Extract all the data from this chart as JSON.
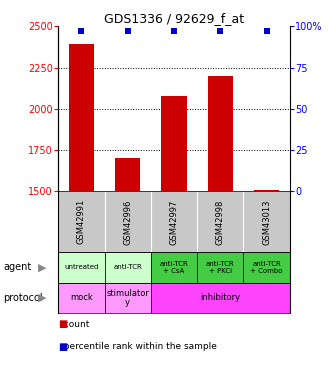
{
  "title": "GDS1336 / 92629_f_at",
  "samples": [
    "GSM42991",
    "GSM42996",
    "GSM42997",
    "GSM42998",
    "GSM43013"
  ],
  "counts": [
    2390,
    1700,
    2080,
    2200,
    1510
  ],
  "percentile_ranks": [
    97,
    97,
    97,
    97,
    97
  ],
  "ylim_left": [
    1500,
    2500
  ],
  "ylim_right": [
    0,
    100
  ],
  "yticks_left": [
    1500,
    1750,
    2000,
    2250,
    2500
  ],
  "yticks_right": [
    0,
    25,
    50,
    75,
    100
  ],
  "bar_color": "#cc0000",
  "square_color": "#0000cc",
  "bar_bottom": 1500,
  "agent_labels": [
    "untreated",
    "anti-TCR",
    "anti-TCR\n+ CsA",
    "anti-TCR\n+ PKCi",
    "anti-TCR\n+ Combo"
  ],
  "agent_colors_light": "#ccffcc",
  "agent_color_dark": "#44cc44",
  "protocol_color_mock": "#ff99ff",
  "protocol_color_stim": "#ff99ff",
  "protocol_color_inhib": "#ff44ff",
  "sample_bg_color": "#c8c8c8",
  "legend_count_color": "#cc0000",
  "legend_percentile_color": "#0000cc",
  "background_color": "#ffffff",
  "gridline_color": "#000000",
  "spine_color": "#000000"
}
